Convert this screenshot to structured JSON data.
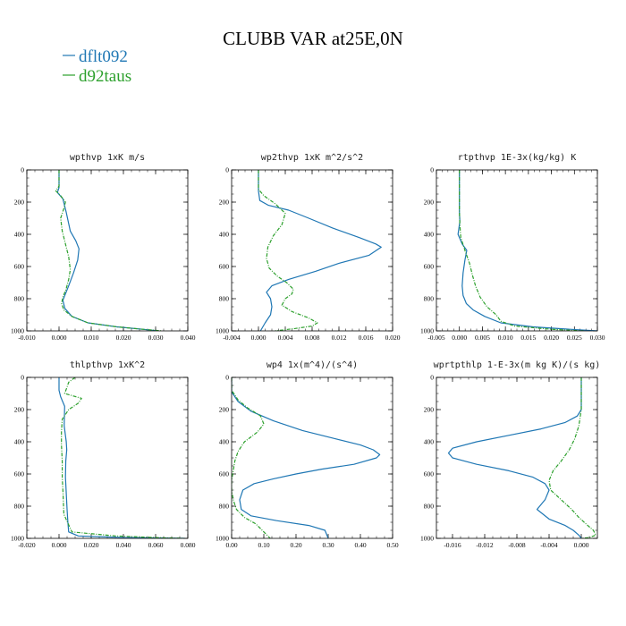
{
  "figure": {
    "title": "CLUBB VAR at25E,0N",
    "legend": [
      {
        "name": "dflt092",
        "color": "#1f77b4"
      },
      {
        "name": "d92taus",
        "color": "#2ca02c"
      }
    ]
  },
  "chart_data": [
    {
      "type": "line",
      "title": "wpthvp  1xK m/s",
      "xlim": [
        -0.01,
        0.04
      ],
      "ylim": [
        0,
        1000
      ],
      "y_inverted": true,
      "xticks": [
        "-0.010",
        "0.000",
        "0.010",
        "0.020",
        "0.030",
        "0.040"
      ],
      "yticks": [
        "0",
        "200",
        "400",
        "600",
        "800",
        "1000"
      ],
      "series": [
        {
          "name": "dflt092",
          "color": "#1f77b4",
          "x": [
            0.0,
            0.0,
            -0.0005,
            0.0012,
            0.0022,
            0.0035,
            0.0052,
            0.0062,
            0.0058,
            0.0045,
            0.003,
            0.0018,
            0.0012,
            0.0018,
            0.004,
            0.009,
            0.018,
            0.026,
            0.031
          ],
          "y": [
            0,
            110,
            140,
            180,
            260,
            380,
            440,
            490,
            560,
            640,
            720,
            780,
            810,
            860,
            910,
            950,
            975,
            990,
            1000
          ]
        },
        {
          "name": "d92taus",
          "color": "#2ca02c",
          "x": [
            0.0,
            0.0,
            -0.001,
            0.0005,
            0.002,
            0.0015,
            0.0005,
            0.001,
            0.002,
            0.003,
            0.0035,
            0.003,
            0.0022,
            0.0012,
            0.0008,
            0.0015,
            0.004,
            0.009,
            0.018,
            0.026,
            0.032
          ],
          "y": [
            0,
            100,
            130,
            160,
            200,
            240,
            300,
            380,
            460,
            540,
            620,
            680,
            740,
            790,
            830,
            870,
            910,
            950,
            975,
            990,
            1000
          ]
        }
      ]
    },
    {
      "type": "line",
      "title": "wp2thvp  1xK m^2/s^2",
      "xlim": [
        -0.004,
        0.02
      ],
      "ylim": [
        0,
        1000
      ],
      "y_inverted": true,
      "xticks": [
        "-0.004",
        "0.000",
        "0.004",
        "0.008",
        "0.012",
        "0.016",
        "0.020"
      ],
      "yticks": [
        "0",
        "200",
        "400",
        "600",
        "800",
        "1000"
      ],
      "series": [
        {
          "name": "dflt092",
          "color": "#1f77b4",
          "x": [
            0.0,
            0.0,
            0.0002,
            0.0015,
            0.0045,
            0.0075,
            0.011,
            0.015,
            0.0175,
            0.0183,
            0.0165,
            0.012,
            0.0085,
            0.0045,
            0.002,
            0.0012,
            0.0018,
            0.002,
            0.0018,
            0.001,
            0.0003
          ],
          "y": [
            0,
            130,
            190,
            220,
            250,
            300,
            360,
            420,
            460,
            480,
            530,
            580,
            630,
            680,
            720,
            760,
            800,
            850,
            900,
            950,
            1000
          ]
        },
        {
          "name": "d92taus",
          "color": "#2ca02c",
          "x": [
            0.0,
            0.0,
            0.0008,
            0.0025,
            0.004,
            0.0035,
            0.0022,
            0.0014,
            0.0012,
            0.0016,
            0.0028,
            0.0042,
            0.0052,
            0.005,
            0.004,
            0.0035,
            0.005,
            0.0075,
            0.0088,
            0.008,
            0.0055,
            0.0035,
            0.0025
          ],
          "y": [
            0,
            120,
            160,
            210,
            270,
            340,
            410,
            480,
            550,
            610,
            660,
            700,
            740,
            770,
            800,
            840,
            880,
            920,
            950,
            970,
            985,
            995,
            1000
          ]
        }
      ]
    },
    {
      "type": "line",
      "title": "rtpthvp  1E-3x(kg/kg) K",
      "xlim": [
        -0.005,
        0.03
      ],
      "ylim": [
        0,
        1000
      ],
      "y_inverted": true,
      "xticks": [
        "-0.005",
        "0.000",
        "0.005",
        "0.010",
        "0.015",
        "0.020",
        "0.025",
        "0.030"
      ],
      "yticks": [
        "0",
        "200",
        "400",
        "600",
        "800",
        "1000"
      ],
      "series": [
        {
          "name": "dflt092",
          "color": "#1f77b4",
          "x": [
            0.0,
            0.0,
            0.0001,
            -0.0003,
            0.0006,
            0.0016,
            0.0012,
            0.0008,
            0.0006,
            0.0008,
            0.0015,
            0.003,
            0.0055,
            0.009,
            0.016,
            0.024,
            0.03
          ],
          "y": [
            0,
            260,
            320,
            400,
            460,
            500,
            560,
            640,
            720,
            780,
            830,
            870,
            910,
            950,
            975,
            990,
            1000
          ]
        },
        {
          "name": "d92taus",
          "color": "#2ca02c",
          "x": [
            0.0,
            0.0,
            0.0001,
            0.0003,
            0.0012,
            0.0022,
            0.0028,
            0.0035,
            0.0045,
            0.006,
            0.008,
            0.009,
            0.012,
            0.02,
            0.027
          ],
          "y": [
            0,
            260,
            340,
            420,
            500,
            580,
            650,
            720,
            790,
            850,
            900,
            940,
            970,
            990,
            1000
          ]
        }
      ]
    },
    {
      "type": "line",
      "title": "thlpthvp  1xK^2",
      "xlim": [
        -0.02,
        0.08
      ],
      "ylim": [
        0,
        1000
      ],
      "y_inverted": true,
      "xticks": [
        "-0.020",
        "0.000",
        "0.020",
        "0.040",
        "0.060",
        "0.080"
      ],
      "yticks": [
        "0",
        "200",
        "400",
        "600",
        "800",
        "1000"
      ],
      "series": [
        {
          "name": "dflt092",
          "color": "#1f77b4",
          "x": [
            0.0,
            0.0,
            0.001,
            0.0035,
            0.0032,
            0.0045,
            0.0048,
            0.0042,
            0.004,
            0.0045,
            0.005,
            0.0055,
            0.006,
            0.012,
            0.04,
            0.065,
            0.078
          ],
          "y": [
            0,
            80,
            120,
            180,
            300,
            400,
            450,
            520,
            620,
            720,
            820,
            900,
            960,
            985,
            995,
            998,
            1000
          ]
        },
        {
          "name": "d92taus",
          "color": "#2ca02c",
          "x": [
            0.01,
            0.008,
            0.006,
            0.005,
            0.0035,
            0.014,
            0.012,
            0.006,
            0.002,
            0.0015,
            0.0015,
            0.002,
            0.002,
            0.0025,
            0.003,
            0.008,
            0.035,
            0.06,
            0.078
          ],
          "y": [
            0,
            15,
            30,
            60,
            100,
            130,
            160,
            200,
            260,
            340,
            420,
            520,
            620,
            720,
            850,
            960,
            985,
            995,
            1000
          ]
        }
      ]
    },
    {
      "type": "line",
      "title": "wp4  1x(m^4)/(s^4)",
      "xlim": [
        0.0,
        0.5
      ],
      "ylim": [
        0,
        1000
      ],
      "y_inverted": true,
      "xticks": [
        "0.00",
        "0.10",
        "0.20",
        "0.30",
        "0.40",
        "0.50"
      ],
      "yticks": [
        "0",
        "200",
        "400",
        "600",
        "800",
        "1000"
      ],
      "series": [
        {
          "name": "dflt092",
          "color": "#1f77b4",
          "x": [
            0.0,
            0.0,
            0.02,
            0.06,
            0.13,
            0.22,
            0.32,
            0.4,
            0.44,
            0.46,
            0.45,
            0.38,
            0.28,
            0.2,
            0.13,
            0.07,
            0.035,
            0.025,
            0.03,
            0.06,
            0.14,
            0.24,
            0.29,
            0.3
          ],
          "y": [
            0,
            90,
            150,
            210,
            270,
            330,
            380,
            420,
            450,
            480,
            500,
            540,
            570,
            600,
            630,
            660,
            700,
            760,
            820,
            860,
            890,
            920,
            950,
            1000
          ]
        },
        {
          "name": "d92taus",
          "color": "#2ca02c",
          "x": [
            0.0,
            0.0,
            0.02,
            0.05,
            0.09,
            0.1,
            0.08,
            0.04,
            0.02,
            0.01,
            0.005,
            0.0,
            0.0,
            0.005,
            0.015,
            0.04,
            0.075,
            0.09,
            0.1,
            0.11,
            0.12
          ],
          "y": [
            0,
            80,
            140,
            190,
            240,
            290,
            340,
            400,
            460,
            520,
            580,
            640,
            700,
            760,
            820,
            870,
            910,
            940,
            960,
            980,
            1000
          ]
        }
      ]
    },
    {
      "type": "line",
      "title": "wprtpthlp  1-E-3x(m kg K)/(s kg)",
      "xlim": [
        -0.018,
        0.002
      ],
      "ylim": [
        0,
        1000
      ],
      "y_inverted": true,
      "xticks": [
        "-0.016",
        "-0.012",
        "-0.008",
        "-0.004",
        "0.000"
      ],
      "yticks": [
        "0",
        "200",
        "400",
        "600",
        "800",
        "1000"
      ],
      "series": [
        {
          "name": "dflt092",
          "color": "#1f77b4",
          "x": [
            0.0,
            0.0,
            -0.0005,
            -0.002,
            -0.005,
            -0.009,
            -0.013,
            -0.016,
            -0.0165,
            -0.016,
            -0.013,
            -0.009,
            -0.006,
            -0.0045,
            -0.004,
            -0.0045,
            -0.0055,
            -0.004,
            -0.002,
            -0.001,
            -0.0003,
            0.0
          ],
          "y": [
            0,
            200,
            240,
            280,
            320,
            360,
            400,
            440,
            470,
            500,
            540,
            580,
            620,
            660,
            700,
            760,
            820,
            880,
            920,
            950,
            980,
            1000
          ]
        },
        {
          "name": "d92taus",
          "color": "#2ca02c",
          "x": [
            0.0,
            0.0,
            -0.0003,
            -0.0008,
            -0.0015,
            -0.0025,
            -0.0035,
            -0.004,
            -0.0038,
            -0.0025,
            -0.0012,
            -0.0003,
            0.0008,
            0.0015,
            0.0018,
            0.001,
            0.0
          ],
          "y": [
            0,
            200,
            300,
            380,
            450,
            520,
            580,
            640,
            700,
            760,
            820,
            870,
            920,
            950,
            980,
            995,
            1000
          ]
        }
      ]
    }
  ]
}
